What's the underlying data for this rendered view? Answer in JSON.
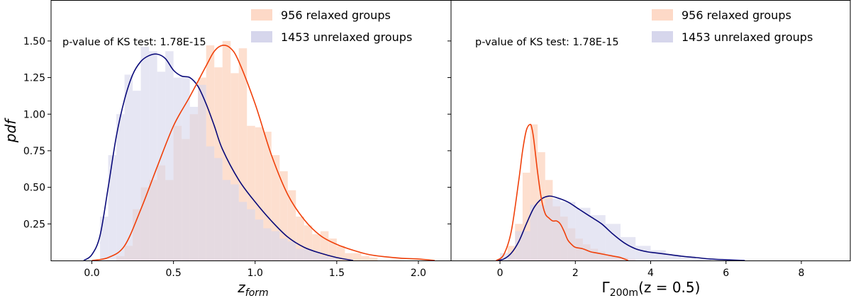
{
  "figure": {
    "ylabel": "pdf"
  },
  "chart_data": [
    {
      "type": "histogram+kde",
      "panel": "left",
      "xlabel_main": "z",
      "xlabel_sub": "form",
      "ylabel": "pdf",
      "xlim": [
        -0.25,
        2.2
      ],
      "ylim": [
        0,
        1.78
      ],
      "xticks": [
        0.0,
        0.5,
        1.0,
        1.5,
        2.0
      ],
      "xtick_labels": [
        "0.0",
        "0.5",
        "1.0",
        "1.5",
        "2.0"
      ],
      "yticks": [
        0.25,
        0.5,
        0.75,
        1.0,
        1.25,
        1.5
      ],
      "ytick_labels": [
        "0.25",
        "0.50",
        "0.75",
        "1.00",
        "1.25",
        "1.50"
      ],
      "annotation": "p-value of KS test: 1.78E-15",
      "legend_position": "top-right",
      "series": [
        {
          "name": "956 relaxed groups",
          "hist_color": "#fdd9c7",
          "kde_color": "#f0400a",
          "bins": [
            0.15,
            0.2,
            0.25,
            0.3,
            0.35,
            0.4,
            0.45,
            0.5,
            0.55,
            0.6,
            0.65,
            0.7,
            0.75,
            0.8,
            0.85,
            0.9,
            0.95,
            1.0,
            1.05,
            1.1,
            1.15,
            1.2,
            1.25,
            1.3,
            1.35,
            1.4,
            1.45,
            1.5,
            1.55,
            1.6,
            1.65,
            1.7,
            1.75
          ],
          "heights": [
            0.03,
            0.1,
            0.35,
            0.5,
            0.55,
            0.65,
            0.55,
            0.92,
            0.83,
            1.0,
            1.25,
            1.47,
            1.32,
            1.5,
            1.28,
            1.45,
            0.92,
            0.91,
            0.88,
            0.72,
            0.61,
            0.48,
            0.3,
            0.24,
            0.18,
            0.2,
            0.15,
            0.1,
            0.05,
            0.05,
            0.03,
            0.02
          ],
          "kde_x": [
            0.0,
            0.1,
            0.2,
            0.3,
            0.4,
            0.5,
            0.6,
            0.7,
            0.75,
            0.8,
            0.85,
            0.9,
            1.0,
            1.1,
            1.2,
            1.3,
            1.4,
            1.5,
            1.6,
            1.7,
            1.8,
            1.9,
            2.0,
            2.1
          ],
          "kde_y": [
            0.0,
            0.02,
            0.1,
            0.35,
            0.64,
            0.92,
            1.12,
            1.33,
            1.43,
            1.47,
            1.45,
            1.36,
            1.07,
            0.72,
            0.45,
            0.28,
            0.17,
            0.11,
            0.07,
            0.04,
            0.025,
            0.015,
            0.01,
            0.0
          ]
        },
        {
          "name": "1453 unrelaxed groups",
          "hist_color": "#d6d6ec",
          "kde_color": "#0a0a7a",
          "bins": [
            0.05,
            0.1,
            0.15,
            0.2,
            0.25,
            0.3,
            0.35,
            0.4,
            0.45,
            0.5,
            0.55,
            0.6,
            0.65,
            0.7,
            0.75,
            0.8,
            0.85,
            0.9,
            0.95,
            1.0,
            1.05,
            1.1,
            1.15,
            1.2,
            1.25,
            1.3,
            1.35,
            1.4,
            1.45,
            1.5
          ],
          "heights": [
            0.3,
            0.72,
            1.0,
            1.27,
            1.16,
            1.46,
            1.43,
            1.29,
            1.43,
            1.25,
            1.25,
            1.05,
            1.2,
            0.78,
            0.7,
            0.55,
            0.52,
            0.4,
            0.35,
            0.28,
            0.22,
            0.2,
            0.15,
            0.13,
            0.08,
            0.08,
            0.06,
            0.03,
            0.02
          ],
          "kde_x": [
            -0.05,
            0.0,
            0.05,
            0.1,
            0.15,
            0.2,
            0.25,
            0.3,
            0.35,
            0.4,
            0.45,
            0.5,
            0.55,
            0.6,
            0.65,
            0.7,
            0.75,
            0.8,
            0.9,
            1.0,
            1.1,
            1.2,
            1.3,
            1.4,
            1.5,
            1.6
          ],
          "kde_y": [
            0.0,
            0.04,
            0.17,
            0.5,
            0.85,
            1.1,
            1.27,
            1.36,
            1.4,
            1.41,
            1.38,
            1.3,
            1.26,
            1.25,
            1.19,
            1.07,
            0.92,
            0.76,
            0.55,
            0.4,
            0.27,
            0.16,
            0.09,
            0.05,
            0.02,
            0.0
          ]
        }
      ]
    },
    {
      "type": "histogram+kde",
      "panel": "right",
      "xlabel_main": "Γ",
      "xlabel_sub": "200m",
      "xlabel_tail": "(z = 0.5)",
      "xlim": [
        -1.3,
        9.3
      ],
      "ylim": [
        0,
        1.78
      ],
      "xticks": [
        0,
        2,
        4,
        6,
        8
      ],
      "xtick_labels": [
        "0",
        "2",
        "4",
        "6",
        "8"
      ],
      "yticks": [
        0.25,
        0.5,
        0.75,
        1.0,
        1.25,
        1.5
      ],
      "annotation": "p-value of KS test: 1.78E-15",
      "legend_position": "top-right",
      "series": [
        {
          "name": "956 relaxed groups",
          "hist_color": "#fdd9c7",
          "kde_color": "#f0400a",
          "bins": [
            0.2,
            0.4,
            0.6,
            0.8,
            1.0,
            1.2,
            1.4,
            1.6,
            1.8,
            2.0,
            2.2,
            2.4,
            2.6,
            2.8,
            3.0,
            3.2,
            3.4,
            3.6
          ],
          "heights": [
            0.1,
            0.25,
            0.6,
            0.93,
            0.74,
            0.55,
            0.37,
            0.3,
            0.22,
            0.15,
            0.11,
            0.08,
            0.06,
            0.04,
            0.03,
            0.02,
            0.01
          ],
          "kde_x": [
            -0.1,
            0.1,
            0.3,
            0.5,
            0.6,
            0.7,
            0.8,
            0.85,
            0.9,
            1.0,
            1.1,
            1.2,
            1.3,
            1.4,
            1.5,
            1.6,
            1.7,
            1.8,
            1.9,
            2.0,
            2.2,
            2.4,
            2.6,
            2.8,
            3.0,
            3.2,
            3.4
          ],
          "kde_y": [
            0.0,
            0.04,
            0.2,
            0.55,
            0.75,
            0.89,
            0.93,
            0.9,
            0.82,
            0.6,
            0.42,
            0.32,
            0.29,
            0.27,
            0.27,
            0.25,
            0.2,
            0.14,
            0.11,
            0.09,
            0.08,
            0.06,
            0.05,
            0.04,
            0.03,
            0.02,
            0.0
          ]
        },
        {
          "name": "1453 unrelaxed groups",
          "hist_color": "#d6d6ec",
          "kde_color": "#0a0a7a",
          "bins": [
            0.0,
            0.4,
            0.8,
            1.2,
            1.6,
            2.0,
            2.4,
            2.8,
            3.2,
            3.6,
            4.0,
            4.4,
            4.8,
            5.2,
            5.6
          ],
          "heights": [
            0.05,
            0.2,
            0.38,
            0.42,
            0.4,
            0.36,
            0.31,
            0.25,
            0.16,
            0.1,
            0.07,
            0.04,
            0.02,
            0.01
          ],
          "kde_x": [
            -0.1,
            0.1,
            0.3,
            0.5,
            0.7,
            0.9,
            1.1,
            1.3,
            1.5,
            1.8,
            2.1,
            2.4,
            2.7,
            3.0,
            3.3,
            3.6,
            3.9,
            4.2,
            4.5,
            4.8,
            5.2,
            5.6,
            6.0,
            6.5
          ],
          "kde_y": [
            0.0,
            0.01,
            0.05,
            0.13,
            0.25,
            0.36,
            0.42,
            0.44,
            0.43,
            0.4,
            0.35,
            0.3,
            0.25,
            0.18,
            0.12,
            0.08,
            0.06,
            0.05,
            0.04,
            0.03,
            0.02,
            0.01,
            0.005,
            0.0
          ]
        }
      ]
    }
  ]
}
